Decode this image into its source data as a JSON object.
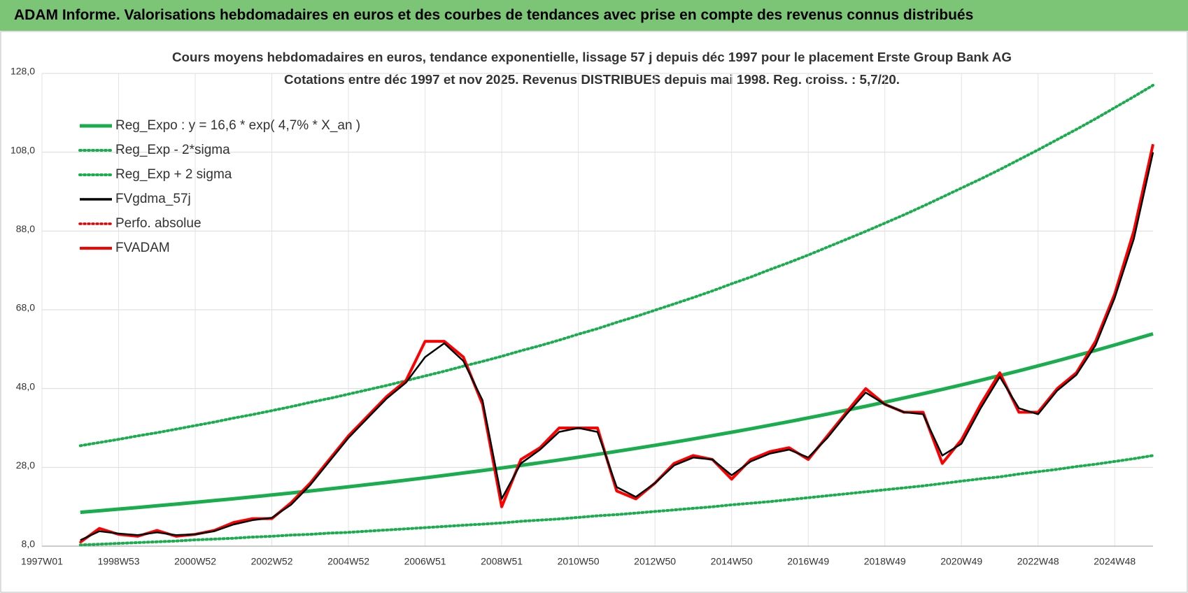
{
  "header": {
    "title": "ADAM Informe. Valorisations hebdomadaires en euros et des courbes de tendances avec prise en compte des revenus connus distribués"
  },
  "chart_data": {
    "type": "line",
    "title": "Cours moyens hebdomadaires en euros, tendance exponentielle, lissage 57 j depuis déc 1997 pour le placement Erste Group Bank AG",
    "subtitle": "Cotations entre déc 1997 et nov 2025.  Revenus DISTRIBUES depuis mai 1998. Reg. croiss. : 5,7/20.",
    "categories": [
      "1997W01",
      null,
      null,
      null,
      "1998W53",
      null,
      null,
      null,
      "2000W52",
      null,
      null,
      null,
      "2002W52",
      null,
      null,
      null,
      "2004W52",
      null,
      null,
      null,
      "2006W51",
      null,
      null,
      null,
      "2008W51",
      null,
      null,
      null,
      "2010W50",
      null,
      null,
      null,
      "2012W50",
      null,
      null,
      null,
      "2014W50",
      null,
      null,
      null,
      "2016W49",
      null,
      null,
      null,
      "2018W49",
      null,
      null,
      null,
      "2020W49",
      null,
      null,
      null,
      "2022W48",
      null,
      null,
      null,
      "2024W48",
      null,
      null
    ],
    "ylim": [
      8,
      128
    ],
    "yticks": [
      {
        "value": 8,
        "label": "8,0"
      },
      {
        "value": 28,
        "label": "28,0"
      },
      {
        "value": 48,
        "label": "48,0"
      },
      {
        "value": 68,
        "label": "68,0"
      },
      {
        "value": 88,
        "label": "88,0"
      },
      {
        "value": 108,
        "label": "108,0"
      },
      {
        "value": 128,
        "label": "128,0"
      }
    ],
    "grid": true,
    "legend": "top-left",
    "series": [
      {
        "name": "Reg_Expo : y = 16,6 * exp( 4,7% *  X_an )",
        "color": "#1aad4e",
        "style": "solid",
        "values": [
          null,
          null,
          16.6,
          16.99,
          17.4,
          17.81,
          18.24,
          18.67,
          19.11,
          19.57,
          20.03,
          20.51,
          21.0,
          21.5,
          22.01,
          22.53,
          23.07,
          23.62,
          24.18,
          24.75,
          25.34,
          25.94,
          26.56,
          27.19,
          27.84,
          28.5,
          29.18,
          29.87,
          30.58,
          31.31,
          32.06,
          32.82,
          33.6,
          34.4,
          35.22,
          36.06,
          36.91,
          37.79,
          38.69,
          39.61,
          40.55,
          41.52,
          42.5,
          43.51,
          44.55,
          45.61,
          46.69,
          47.8,
          48.94,
          50.1,
          51.29,
          52.51,
          53.76,
          55.04,
          56.35,
          57.69,
          59.06,
          60.47,
          61.9
        ]
      },
      {
        "name": "Reg_Exp - 2*sigma",
        "color": "#1aad4e",
        "style": "dotted",
        "values": [
          null,
          null,
          8.3,
          8.5,
          8.7,
          8.9,
          9.1,
          9.3,
          9.6,
          9.8,
          10.0,
          10.3,
          10.5,
          10.8,
          11.0,
          11.3,
          11.5,
          11.8,
          12.1,
          12.4,
          12.7,
          13.0,
          13.3,
          13.6,
          13.9,
          14.3,
          14.6,
          14.9,
          15.3,
          15.7,
          16.0,
          16.4,
          16.8,
          17.2,
          17.6,
          18.0,
          18.5,
          18.9,
          19.3,
          19.8,
          20.3,
          20.8,
          21.3,
          21.8,
          22.3,
          22.8,
          23.3,
          23.9,
          24.5,
          25.1,
          25.6,
          26.3,
          26.9,
          27.5,
          28.2,
          28.8,
          29.5,
          30.2,
          31.0
        ]
      },
      {
        "name": "Reg_Exp + 2 sigma",
        "color": "#1aad4e",
        "style": "dotted",
        "values": [
          null,
          null,
          33.5,
          34.3,
          35.1,
          36.0,
          36.8,
          37.7,
          38.6,
          39.5,
          40.5,
          41.4,
          42.4,
          43.4,
          44.5,
          45.5,
          46.6,
          47.7,
          48.8,
          50.0,
          51.2,
          52.4,
          53.7,
          54.9,
          56.2,
          57.6,
          58.9,
          60.3,
          61.8,
          63.2,
          64.8,
          66.3,
          67.9,
          69.5,
          71.1,
          72.8,
          74.6,
          76.3,
          78.2,
          80.0,
          81.9,
          83.9,
          85.9,
          87.9,
          90.0,
          92.1,
          94.3,
          96.6,
          98.9,
          101.2,
          103.6,
          106.1,
          108.6,
          111.2,
          113.8,
          116.5,
          119.3,
          122.1,
          125.0
        ]
      },
      {
        "name": "FVgdma_57j",
        "color": "#000000",
        "style": "solid",
        "values": [
          null,
          null,
          9.5,
          11.8,
          11.2,
          10.8,
          11.5,
          10.8,
          11,
          11.8,
          13.5,
          14.6,
          15.2,
          18.5,
          23.5,
          29.5,
          35.5,
          40.5,
          45.5,
          49.5,
          56,
          59.5,
          55,
          45,
          20,
          29,
          32.5,
          37,
          38,
          37,
          23,
          20.5,
          24,
          28.5,
          30.5,
          30,
          26,
          29.5,
          31.5,
          32.5,
          30.5,
          35.5,
          41.5,
          47,
          44,
          42,
          41.5,
          31,
          34,
          43,
          51,
          43,
          41.5,
          47.5,
          51.5,
          59,
          71,
          86,
          108
        ]
      },
      {
        "name": "Perfo. absolue",
        "color": "#e00000",
        "style": "dotted",
        "values": [
          null,
          null,
          9,
          12.5,
          11,
          10.5,
          12,
          10.5,
          11,
          12,
          14,
          15,
          15,
          19,
          24,
          30,
          36,
          41,
          46,
          50,
          60,
          60,
          56,
          44,
          18,
          30,
          33,
          38,
          38,
          38,
          22,
          20,
          24,
          29,
          31,
          30,
          25,
          30,
          32,
          33,
          30,
          36,
          42,
          48,
          44,
          42,
          42,
          29,
          35,
          44,
          52,
          42,
          42,
          48,
          52,
          60,
          72,
          88,
          110
        ]
      },
      {
        "name": "FVADAM",
        "color": "#ff0000",
        "style": "solid",
        "values": [
          null,
          null,
          9,
          12.5,
          11,
          10.5,
          12,
          10.5,
          11,
          12,
          14,
          15,
          15,
          19,
          24,
          30,
          36,
          41,
          46,
          50,
          60,
          60,
          56,
          44,
          18,
          30,
          33,
          38,
          38,
          38,
          22,
          20,
          24,
          29,
          31,
          30,
          25,
          30,
          32,
          33,
          30,
          36,
          42,
          48,
          44,
          42,
          42,
          29,
          35,
          44,
          52,
          42,
          42,
          48,
          52,
          60,
          72,
          88,
          110
        ]
      }
    ]
  }
}
